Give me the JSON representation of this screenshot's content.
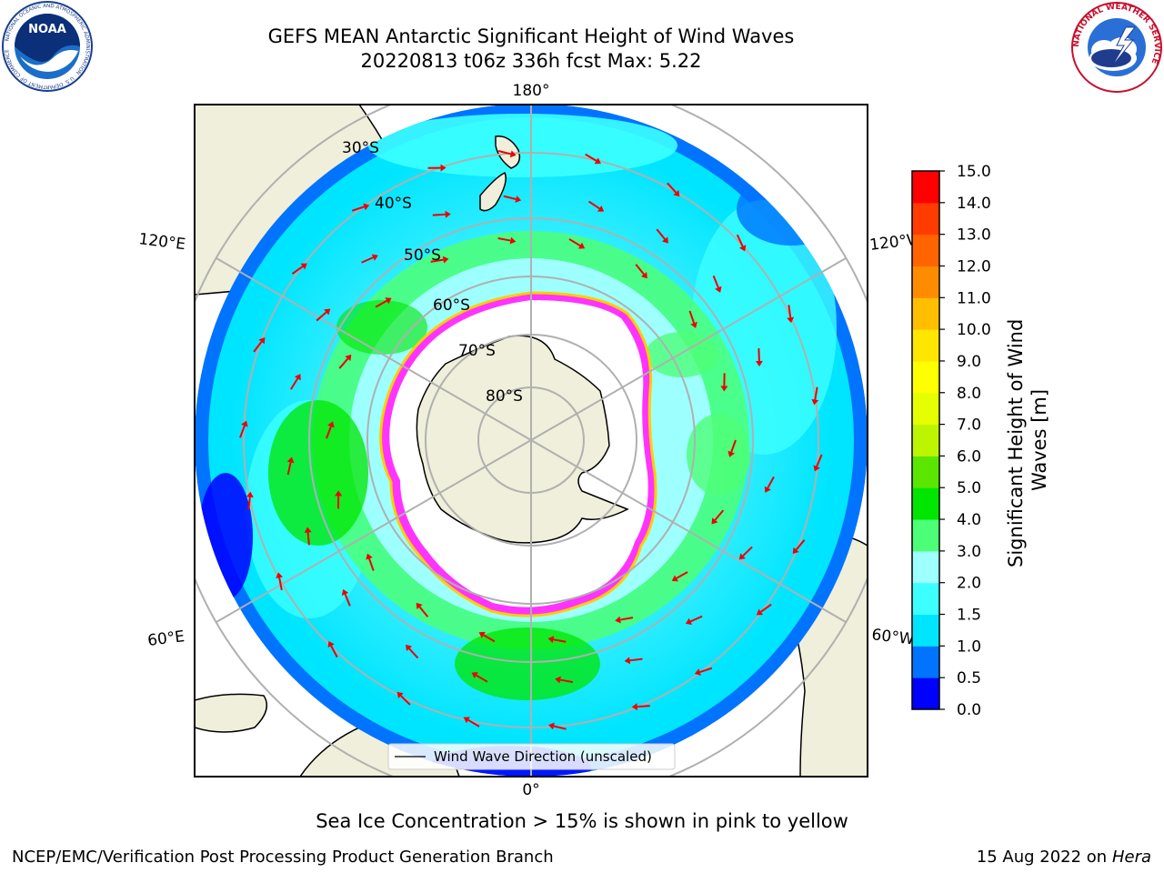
{
  "title": {
    "line1": "GEFS MEAN Antarctic Significant Height of Wind Waves",
    "line2": "20220813 t06z 336h fcst   Max: 5.22"
  },
  "logos": {
    "left": "NOAA",
    "left_ring_text": "NATIONAL OCEANIC AND ATMOSPHERIC ADMINISTRATION · U.S. DEPARTMENT OF COMMERCE",
    "right_ring_text": "NATIONAL WEATHER SERVICE"
  },
  "map": {
    "longitude_labels": {
      "top": "180°",
      "bottom": "0°",
      "upper_left": "120°E",
      "upper_right": "120°W",
      "lower_left": "60°E",
      "lower_right": "60°W"
    },
    "latitude_labels": [
      "30°S",
      "40°S",
      "50°S",
      "60°S",
      "70°S",
      "80°S"
    ],
    "legend_label": "Wind Wave Direction (unscaled)"
  },
  "colorbar": {
    "label_line1": "Significant Height of Wind",
    "label_line2": "Waves [m]",
    "ticks": [
      "0.0",
      "0.5",
      "1.0",
      "1.5",
      "2.0",
      "3.0",
      "4.0",
      "5.0",
      "6.0",
      "7.0",
      "8.0",
      "9.0",
      "10.0",
      "11.0",
      "12.0",
      "13.0",
      "14.0",
      "15.0"
    ],
    "colors": [
      "#0000ff",
      "#0073ff",
      "#00e5ff",
      "#3cffff",
      "#9effff",
      "#4dff77",
      "#00e600",
      "#5ae600",
      "#bdf500",
      "#e5ff00",
      "#ffff00",
      "#ffe600",
      "#ffbf00",
      "#ff8c00",
      "#ff6400",
      "#ff3c00",
      "#ff0000"
    ]
  },
  "footer": {
    "subtitle": "Sea Ice Concentration > 15% is shown in pink to yellow",
    "credit": "NCEP/EMC/Verification Post Processing Product Generation Branch",
    "date": "15 Aug 2022 on",
    "host": "Hera"
  }
}
